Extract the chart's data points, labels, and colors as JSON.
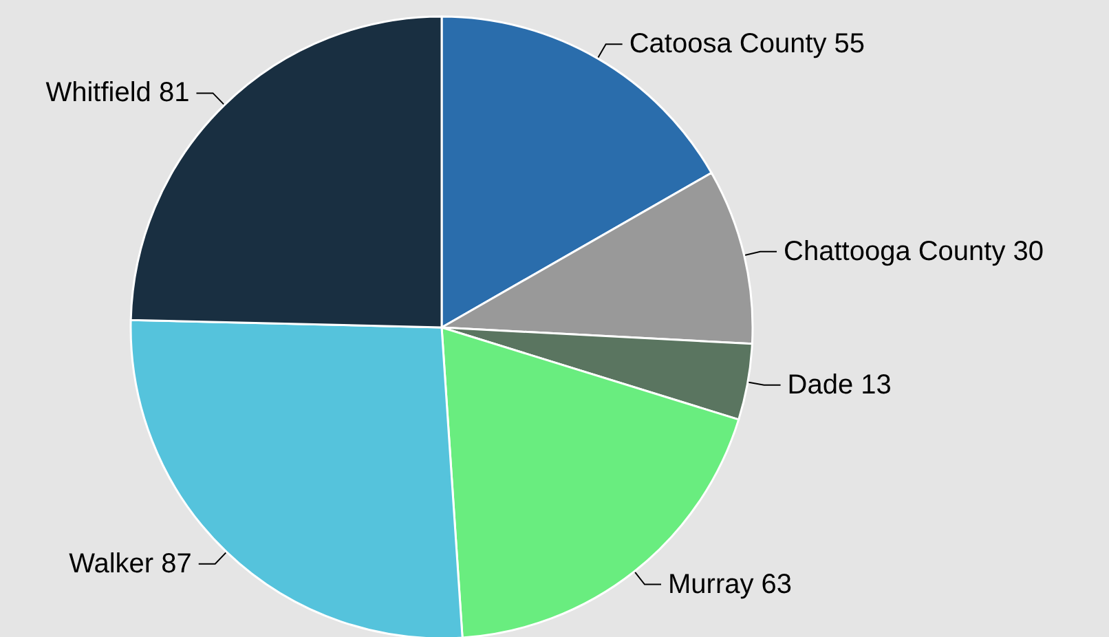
{
  "chart_data": {
    "type": "pie",
    "categories": [
      "Catoosa County",
      "Chattooga County",
      "Dade",
      "Murray",
      "Walker",
      "Whitfield"
    ],
    "values": [
      55,
      30,
      13,
      63,
      87,
      81
    ],
    "colors": [
      "#2a6dac",
      "#999999",
      "#5a7560",
      "#69ed7f",
      "#55c3dc",
      "#192f41"
    ],
    "data_labels": true
  }
}
